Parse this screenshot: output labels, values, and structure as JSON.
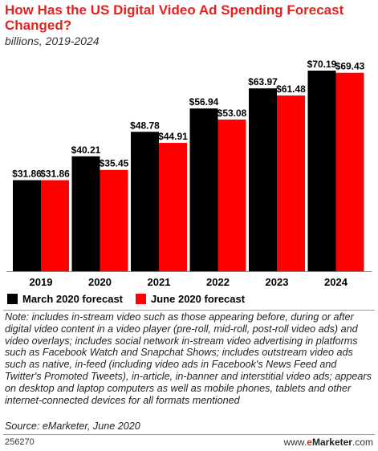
{
  "title": "How Has the US Digital Video Ad Spending Forecast Changed?",
  "subtitle": "billions, 2019-2024",
  "colors": {
    "march": "#000000",
    "june": "#ff0000",
    "accent": "#e8211d"
  },
  "chart_data": {
    "type": "bar",
    "categories": [
      "2019",
      "2020",
      "2021",
      "2022",
      "2023",
      "2024"
    ],
    "series": [
      {
        "name": "March 2020 forecast",
        "values": [
          31.86,
          40.21,
          48.78,
          56.94,
          63.97,
          70.19
        ],
        "labels": [
          "$31.86",
          "$40.21",
          "$48.78",
          "$56.94",
          "$63.97",
          "$70.19"
        ]
      },
      {
        "name": "June 2020 forecast",
        "values": [
          31.86,
          35.45,
          44.91,
          53.08,
          61.48,
          69.43
        ],
        "labels": [
          "$31.86",
          "$35.45",
          "$44.91",
          "$53.08",
          "$61.48",
          "$69.43"
        ]
      }
    ],
    "ylim": [
      0,
      70.19
    ],
    "grid": false,
    "legend": "bottom-left"
  },
  "note": "Note: includes in-stream video such as those appearing before, during or after digital video content in a video player (pre-roll, mid-roll, post-roll video ads) and video overlays; includes social network in-stream video advertising in platforms such as Facebook Watch and Snapchat Shows; includes outstream video ads such as native, in-feed (including video ads in Facebook's News Feed and Twitter's Promoted Tweets), in-article, in-banner and interstitial video ads; appears on desktop and laptop computers as well as mobile phones, tablets and other internet-connected devices for all formats mentioned",
  "source": "Source: eMarketer, June 2020",
  "chart_id": "256270",
  "brand": {
    "prefix": "www.",
    "e": "e",
    "name": "Marketer",
    "suffix": ".com"
  }
}
